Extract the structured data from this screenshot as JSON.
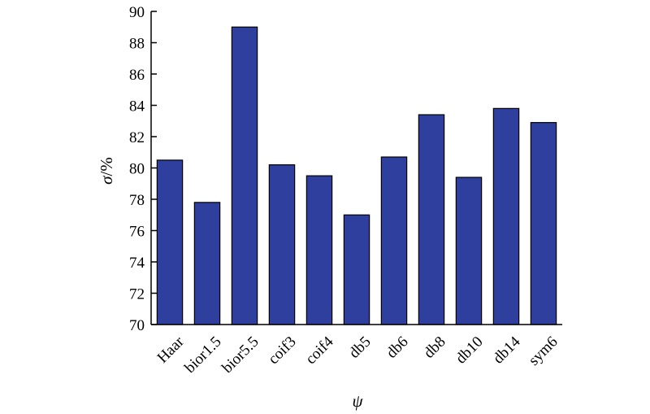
{
  "chart_data": {
    "type": "bar",
    "title": "",
    "xlabel": "ψ",
    "ylabel": "σ/%",
    "ylabel_symbol": "σ",
    "ylabel_unit": "/%",
    "categories": [
      "Haar",
      "bior1.5",
      "bior5.5",
      "coif3",
      "coif4",
      "db5",
      "db6",
      "db8",
      "db10",
      "db14",
      "sym6"
    ],
    "values": [
      80.5,
      77.8,
      89.0,
      80.2,
      79.5,
      77.0,
      80.7,
      83.4,
      79.4,
      83.8,
      82.9
    ],
    "ylim": [
      70,
      90
    ],
    "yticks": [
      70,
      72,
      74,
      76,
      78,
      80,
      82,
      84,
      86,
      88,
      90
    ],
    "grid": false,
    "legend": "none",
    "bar_color": "#2E3F9E"
  }
}
